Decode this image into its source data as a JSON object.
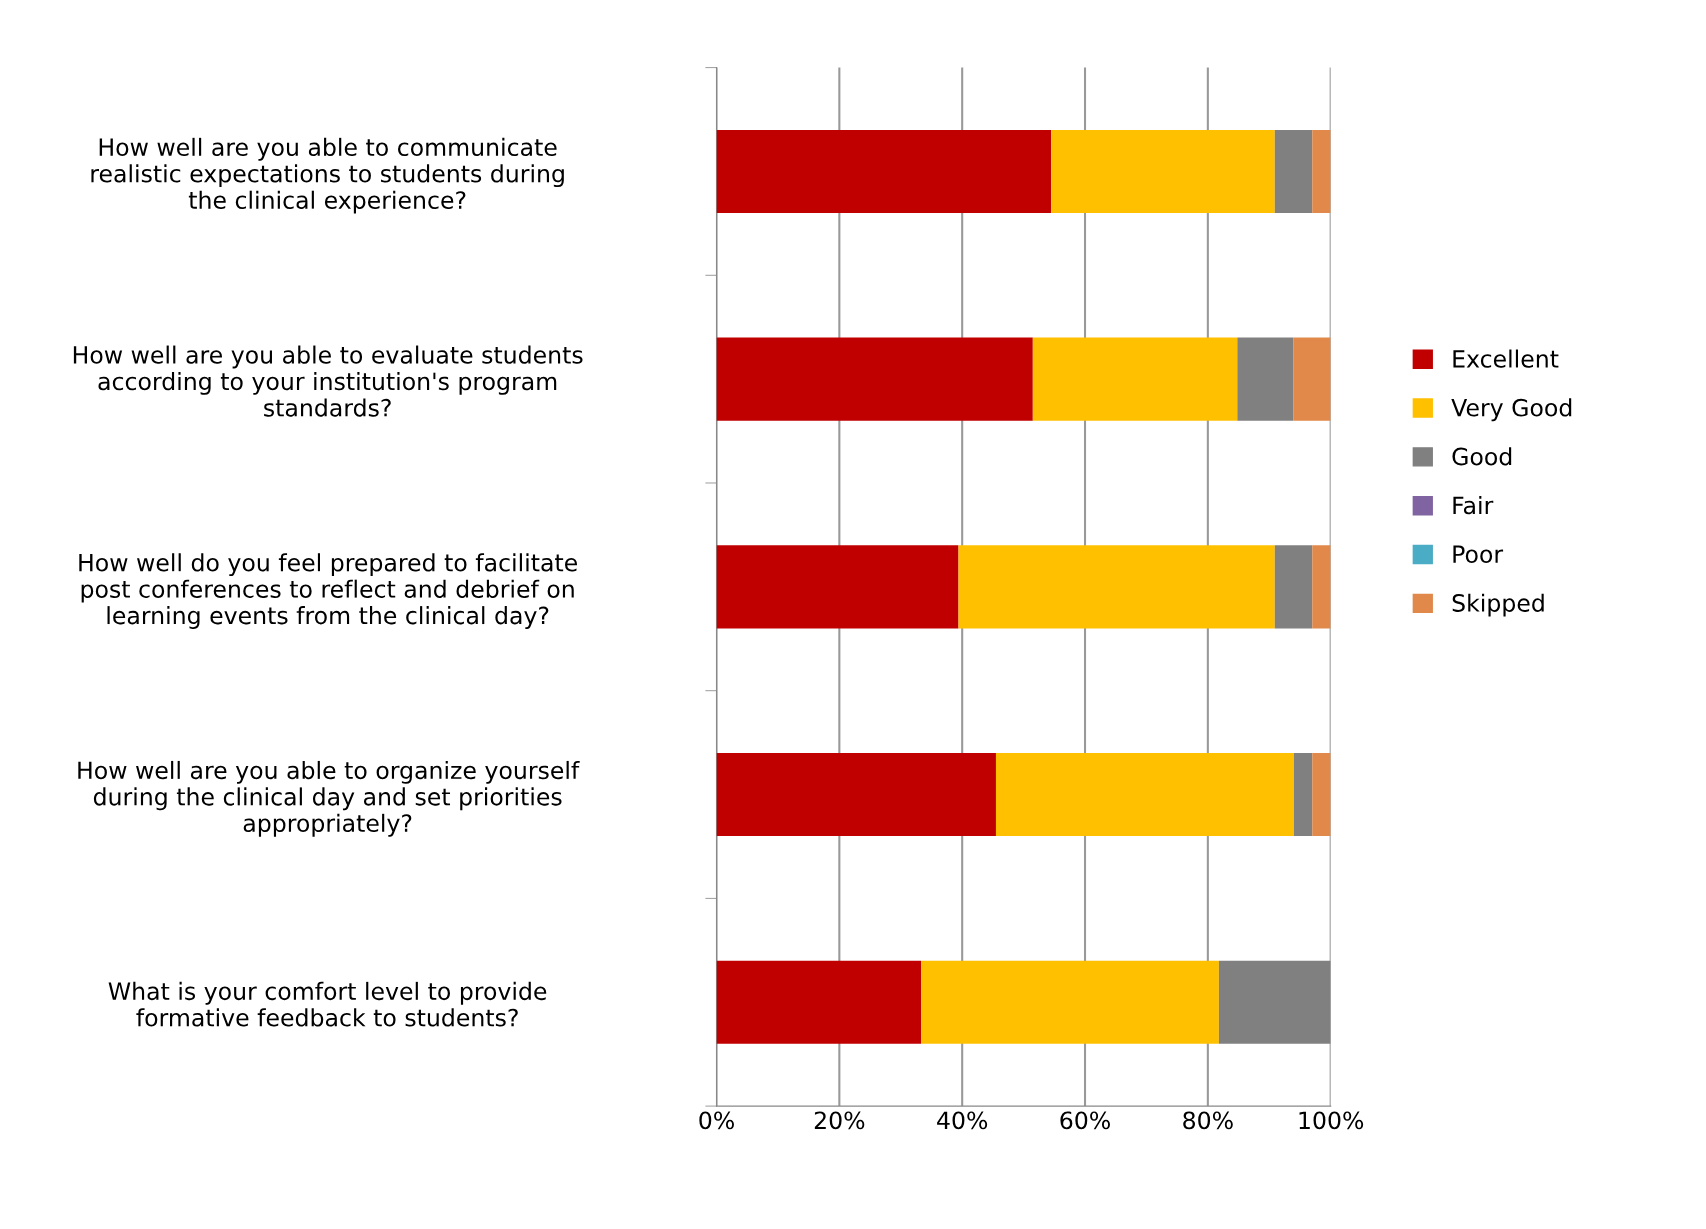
{
  "chart_data": {
    "type": "bar",
    "orientation": "horizontal",
    "stacked": true,
    "categories": [
      "How well are you able to communicate\nrealistic expectations to students during\nthe clinical experience?",
      "How well are you able to evaluate students\naccording to your institution's program\nstandards?",
      "How well do you feel prepared to facilitate\npost conferences to reflect and debrief on\nlearning events from the clinical day?",
      "How well are you able to organize yourself\nduring the clinical day and set priorities\nappropriately?",
      "What is your comfort level to provide\nformative feedback to students?"
    ],
    "series": [
      {
        "name": "Excellent",
        "color": "#c00000",
        "values": [
          54.5,
          51.5,
          39.4,
          45.5,
          33.3
        ]
      },
      {
        "name": "Very Good",
        "color": "#ffc000",
        "values": [
          36.4,
          33.3,
          51.5,
          48.5,
          48.5
        ]
      },
      {
        "name": "Good",
        "color": "#808080",
        "values": [
          6.1,
          9.1,
          6.1,
          3.0,
          18.2
        ]
      },
      {
        "name": "Fair",
        "color": "#8064a2",
        "values": [
          0,
          0,
          0,
          0,
          0
        ]
      },
      {
        "name": "Poor",
        "color": "#4bacc6",
        "values": [
          0,
          0,
          0,
          0,
          0
        ]
      },
      {
        "name": "Skipped",
        "color": "#e0894a",
        "values": [
          3.0,
          6.1,
          3.0,
          3.0,
          0
        ]
      }
    ],
    "xlim": [
      0,
      100
    ],
    "xticks": [
      {
        "value": 0,
        "label": "0%"
      },
      {
        "value": 20,
        "label": "20%"
      },
      {
        "value": 40,
        "label": "40%"
      },
      {
        "value": 60,
        "label": "60%"
      },
      {
        "value": 80,
        "label": "80%"
      },
      {
        "value": 100,
        "label": "100%"
      }
    ],
    "grid": "x",
    "legend": "right"
  }
}
